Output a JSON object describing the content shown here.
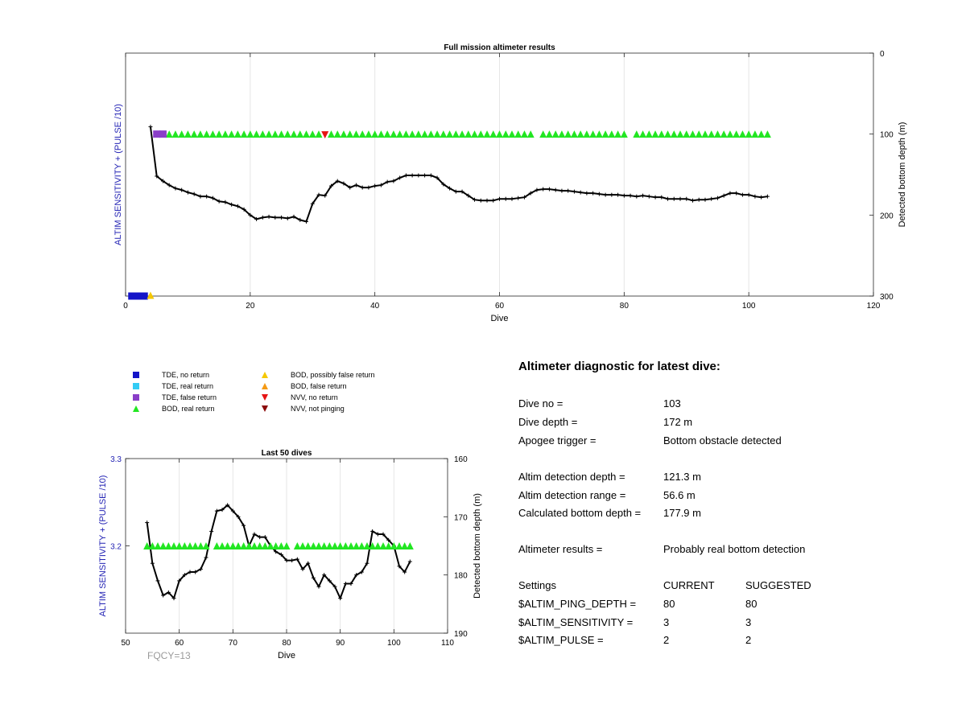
{
  "chart_data": [
    {
      "type": "line",
      "title": "Full mission altimeter results",
      "xlabel": "Dive",
      "ylabel_left": "ALTIM SENSITIVITY + (PULSE /10)",
      "ylabel_right": "Detected bottom depth (m)",
      "xlim": [
        0,
        120
      ],
      "ylim_right": [
        0,
        300
      ],
      "y_right_reversed": true,
      "x_ticks": [
        0,
        20,
        40,
        60,
        80,
        100,
        120
      ],
      "y_right_ticks": [
        0,
        100,
        200,
        300
      ],
      "grid": "x",
      "series": [
        {
          "kind": "line",
          "x": [
            4,
            5,
            6,
            7,
            8,
            9,
            10,
            11,
            12,
            13,
            14,
            15,
            16,
            17,
            18,
            19,
            20,
            21,
            22,
            23,
            24,
            25,
            26,
            27,
            28,
            29,
            30,
            31,
            32,
            33,
            34,
            35,
            36,
            37,
            38,
            39,
            40,
            41,
            42,
            43,
            44,
            45,
            46,
            47,
            48,
            49,
            50,
            51,
            52,
            53,
            54,
            55,
            56,
            57,
            58,
            59,
            60,
            61,
            62,
            63,
            64,
            65,
            66,
            67,
            68,
            69,
            70,
            71,
            72,
            73,
            74,
            75,
            76,
            77,
            78,
            79,
            80,
            81,
            82,
            83,
            84,
            85,
            86,
            87,
            88,
            89,
            90,
            91,
            92,
            93,
            94,
            95,
            96,
            97,
            98,
            99,
            100,
            101,
            102,
            103
          ],
          "y": [
            91,
            152,
            158,
            163,
            167,
            169,
            172,
            174,
            177,
            177,
            179,
            183,
            184,
            187,
            189,
            193,
            200,
            205,
            203,
            202,
            203,
            203,
            204,
            202,
            206,
            208,
            186,
            175,
            176,
            164,
            158,
            161,
            166,
            163,
            166,
            166,
            164,
            163,
            159,
            158,
            154,
            151,
            151,
            151,
            151,
            151,
            154,
            162,
            167,
            171,
            171,
            176,
            181,
            182,
            182,
            182,
            180,
            180,
            180,
            179,
            178,
            173,
            169,
            168,
            168,
            169,
            170,
            170,
            171,
            172,
            173,
            173,
            174,
            175,
            175,
            175,
            176,
            176,
            177,
            176,
            177,
            178,
            178,
            180,
            180,
            180,
            180,
            182,
            181,
            181,
            180,
            179,
            176,
            173,
            173,
            175,
            175,
            177,
            178,
            177
          ]
        },
        {
          "kind": "marker",
          "name": "BOD, real return",
          "x": [
            7,
            8,
            9,
            10,
            11,
            12,
            13,
            14,
            15,
            16,
            17,
            18,
            19,
            20,
            21,
            22,
            23,
            24,
            25,
            26,
            27,
            28,
            29,
            30,
            31,
            33,
            34,
            35,
            36,
            37,
            38,
            39,
            40,
            41,
            42,
            43,
            44,
            45,
            46,
            47,
            48,
            49,
            50,
            51,
            52,
            53,
            54,
            55,
            56,
            57,
            58,
            59,
            60,
            61,
            62,
            63,
            64,
            65,
            67,
            68,
            69,
            70,
            71,
            72,
            73,
            74,
            75,
            76,
            77,
            78,
            79,
            80,
            82,
            83,
            84,
            85,
            86,
            87,
            88,
            89,
            90,
            91,
            92,
            93,
            94,
            95,
            96,
            97,
            98,
            99,
            100,
            101,
            102,
            103
          ],
          "y": [
            100,
            100,
            100,
            100,
            100,
            100,
            100,
            100,
            100,
            100,
            100,
            100,
            100,
            100,
            100,
            100,
            100,
            100,
            100,
            100,
            100,
            100,
            100,
            100,
            100,
            100,
            100,
            100,
            100,
            100,
            100,
            100,
            100,
            100,
            100,
            100,
            100,
            100,
            100,
            100,
            100,
            100,
            100,
            100,
            100,
            100,
            100,
            100,
            100,
            100,
            100,
            100,
            100,
            100,
            100,
            100,
            100,
            100,
            100,
            100,
            100,
            100,
            100,
            100,
            100,
            100,
            100,
            100,
            100,
            100,
            100,
            100,
            100,
            100,
            100,
            100,
            100,
            100,
            100,
            100,
            100,
            100,
            100,
            100,
            100,
            100,
            100,
            100,
            100,
            100,
            100,
            100,
            100,
            100
          ]
        },
        {
          "kind": "marker",
          "name": "TDE, false return",
          "x": [
            5,
            6
          ],
          "y": [
            100,
            100
          ]
        },
        {
          "kind": "marker",
          "name": "NVV, no return",
          "x": [
            32
          ],
          "y": [
            101
          ]
        },
        {
          "kind": "marker",
          "name": "TDE, no return",
          "x": [
            1,
            2,
            3
          ],
          "y": [
            300,
            300,
            300
          ]
        },
        {
          "kind": "marker",
          "name": "BOD, possibly false return",
          "x": [
            4
          ],
          "y": [
            299
          ]
        }
      ]
    },
    {
      "type": "line",
      "title": "Last 50 dives",
      "xlabel": "Dive",
      "ylabel_left": "ALTIM SENSITIVITY + (PULSE /10)",
      "ylabel_right": "Detected bottom depth (m)",
      "xlim": [
        50,
        110
      ],
      "ylim_left": [
        3.1,
        3.3
      ],
      "ylim_right": [
        160,
        190
      ],
      "y_right_reversed": true,
      "x_ticks": [
        50,
        60,
        70,
        80,
        90,
        100,
        110
      ],
      "y_left_ticks": [
        "3.2",
        "3.3"
      ],
      "y_right_ticks": [
        160,
        170,
        180,
        190
      ],
      "grid": "x",
      "annotation": "FQCY=13",
      "series": [
        {
          "kind": "line",
          "x": [
            54,
            55,
            56,
            57,
            58,
            59,
            60,
            61,
            62,
            63,
            64,
            65,
            66,
            67,
            68,
            69,
            70,
            71,
            72,
            73,
            74,
            75,
            76,
            77,
            78,
            79,
            80,
            81,
            82,
            83,
            84,
            85,
            86,
            87,
            88,
            89,
            90,
            91,
            92,
            93,
            94,
            95,
            96,
            97,
            98,
            99,
            100,
            101,
            102,
            103
          ],
          "y": [
            171,
            178,
            181,
            183.5,
            183,
            184,
            181,
            180,
            179.5,
            179.5,
            179,
            177,
            172.5,
            169,
            168.8,
            168,
            169,
            170,
            171.5,
            175,
            173,
            173.5,
            173.5,
            175,
            176,
            176.5,
            177.5,
            177.5,
            177.3,
            179,
            178,
            180.5,
            182,
            180,
            181,
            182,
            184,
            181.5,
            181.5,
            180,
            179.5,
            178,
            172.5,
            173,
            173,
            174,
            175,
            178.5,
            179.5,
            177.7
          ]
        },
        {
          "kind": "marker",
          "name": "BOD, real return",
          "x": [
            54,
            55,
            56,
            57,
            58,
            59,
            60,
            61,
            62,
            63,
            64,
            65,
            67,
            68,
            69,
            70,
            71,
            72,
            73,
            74,
            75,
            76,
            77,
            78,
            79,
            80,
            82,
            83,
            84,
            85,
            86,
            87,
            88,
            89,
            90,
            91,
            92,
            93,
            94,
            95,
            96,
            97,
            98,
            99,
            100,
            101,
            102,
            103
          ],
          "y": [
            3.2,
            3.2,
            3.2,
            3.2,
            3.2,
            3.2,
            3.2,
            3.2,
            3.2,
            3.2,
            3.2,
            3.2,
            3.2,
            3.2,
            3.2,
            3.2,
            3.2,
            3.2,
            3.2,
            3.2,
            3.2,
            3.2,
            3.2,
            3.2,
            3.2,
            3.2,
            3.2,
            3.2,
            3.2,
            3.2,
            3.2,
            3.2,
            3.2,
            3.2,
            3.2,
            3.2,
            3.2,
            3.2,
            3.2,
            3.2,
            3.2,
            3.2,
            3.2,
            3.2,
            3.2,
            3.2,
            3.2,
            3.2
          ]
        }
      ]
    }
  ],
  "legend": {
    "items": [
      {
        "label": "TDE, no return",
        "marker": "square",
        "color": "#1414c8"
      },
      {
        "label": "TDE, real return",
        "marker": "square",
        "color": "#33ccf5"
      },
      {
        "label": "TDE, false return",
        "marker": "square",
        "color": "#8a3ec8"
      },
      {
        "label": "BOD, real return",
        "marker": "triangle-up",
        "color": "#22e622"
      },
      {
        "label": "BOD, possibly false return",
        "marker": "triangle-up",
        "color": "#f5c800"
      },
      {
        "label": "BOD, false return",
        "marker": "triangle-up",
        "color": "#f59a14"
      },
      {
        "label": "NVV, no return",
        "marker": "triangle-down",
        "color": "#e61414"
      },
      {
        "label": "NVV, not pinging",
        "marker": "triangle-down",
        "color": "#8c0a0a"
      }
    ]
  },
  "diagnostic": {
    "title": "Altimeter diagnostic for latest dive:",
    "rows": [
      {
        "label": "Dive no =",
        "value": "103"
      },
      {
        "label": "Dive depth =",
        "value": "172 m"
      },
      {
        "label": "Apogee trigger =",
        "value": "Bottom obstacle detected"
      },
      {
        "label": "Altim detection depth =",
        "value": "121.3 m"
      },
      {
        "label": "Altim detection range =",
        "value": "56.6 m"
      },
      {
        "label": "Calculated bottom depth =",
        "value": "177.9 m"
      },
      {
        "label": "Altimeter results =",
        "value": "Probably real bottom detection"
      }
    ],
    "settings": {
      "header": {
        "label": "Settings",
        "current": "CURRENT",
        "suggested": "SUGGESTED"
      },
      "rows": [
        {
          "label": "$ALTIM_PING_DEPTH =",
          "current": "80",
          "suggested": "80"
        },
        {
          "label": "$ALTIM_SENSITIVITY =",
          "current": "3",
          "suggested": "3"
        },
        {
          "label": "$ALTIM_PULSE =",
          "current": "2",
          "suggested": "2"
        }
      ]
    }
  },
  "colors": {
    "axis_label_left": "#2323b4",
    "line": "#000000",
    "grid": "#e6e6e6",
    "annotation": "#9a9a9a"
  }
}
